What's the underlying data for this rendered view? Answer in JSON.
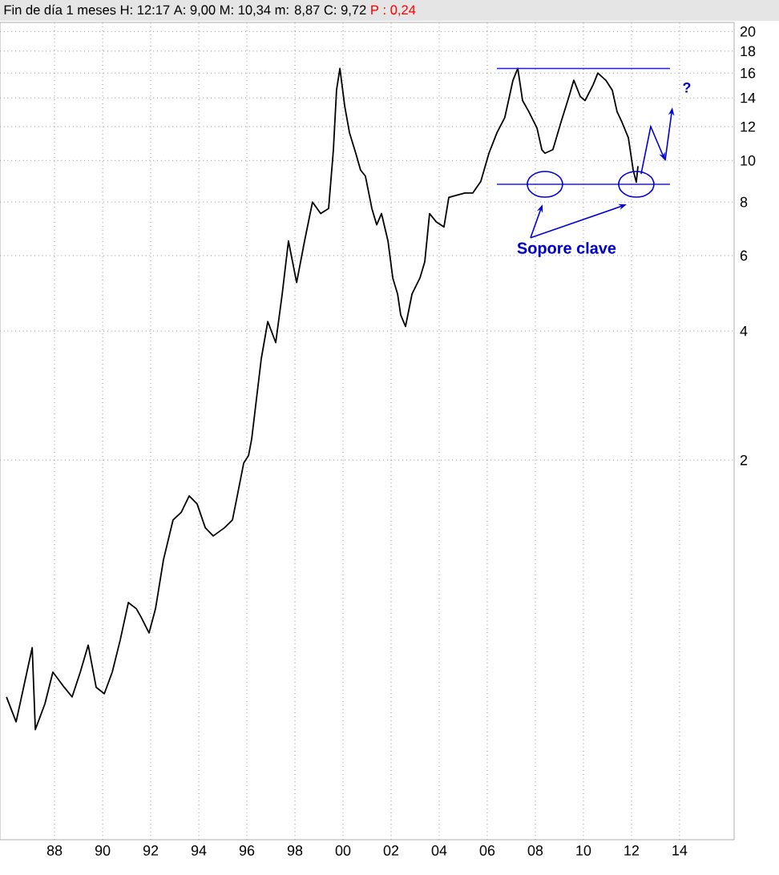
{
  "chart_data": {
    "type": "line",
    "title": "Fin de día 1 meses H: 12:17 A: 9,00 M: 10,34 m: 8,87 C: 9,72",
    "subtitle": "P : 0,24",
    "log": "y",
    "grid": true,
    "xlim": [
      1985.73,
      2016.27
    ],
    "ylim": [
      0.26,
      21
    ],
    "xticks": [
      {
        "value": 1988,
        "label": "88"
      },
      {
        "value": 1990,
        "label": "90"
      },
      {
        "value": 1992,
        "label": "92"
      },
      {
        "value": 1994,
        "label": "94"
      },
      {
        "value": 1996,
        "label": "96"
      },
      {
        "value": 1998,
        "label": "98"
      },
      {
        "value": 2000,
        "label": "00"
      },
      {
        "value": 2002,
        "label": "02"
      },
      {
        "value": 2004,
        "label": "04"
      },
      {
        "value": 2006,
        "label": "06"
      },
      {
        "value": 2008,
        "label": "08"
      },
      {
        "value": 2010,
        "label": "10"
      },
      {
        "value": 2012,
        "label": "12"
      },
      {
        "value": 2014,
        "label": "14"
      }
    ],
    "yticks": [
      2,
      4,
      6,
      8,
      10,
      12,
      14,
      16,
      18,
      20
    ],
    "series": [
      {
        "color": "#000000",
        "x": [
          1986.0,
          1986.4,
          1987.07,
          1987.2,
          1987.6,
          1987.93,
          1988.4,
          1988.73,
          1989.07,
          1989.4,
          1989.73,
          1990.07,
          1990.4,
          1990.73,
          1991.07,
          1991.4,
          1991.6,
          1991.93,
          1992.2,
          1992.53,
          1992.93,
          1993.27,
          1993.6,
          1993.93,
          1994.27,
          1994.6,
          1995.07,
          1995.4,
          1995.6,
          1995.87,
          1996.07,
          1996.2,
          1996.6,
          1996.87,
          1997.2,
          1997.47,
          1997.73,
          1998.07,
          1998.4,
          1998.73,
          1999.07,
          1999.4,
          1999.6,
          1999.73,
          1999.87,
          2000.07,
          2000.27,
          2000.53,
          2000.73,
          2000.93,
          2001.2,
          2001.4,
          2001.6,
          2001.87,
          2002.07,
          2002.27,
          2002.4,
          2002.6,
          2002.87,
          2003.2,
          2003.4,
          2003.6,
          2003.87,
          2004.2,
          2004.4,
          2004.73,
          2005.07,
          2005.4,
          2005.73,
          2006.07,
          2006.4,
          2006.73,
          2007.07,
          2007.27,
          2007.47,
          2007.73,
          2008.07,
          2008.27,
          2008.4,
          2008.73,
          2009.07,
          2009.4,
          2009.6,
          2009.87,
          2010.07,
          2010.4,
          2010.6,
          2010.93,
          2011.2,
          2011.4,
          2011.6,
          2011.87,
          2012.07,
          2012.2,
          2012.27
        ],
        "values": [
          0.56,
          0.49,
          0.73,
          0.47,
          0.54,
          0.64,
          0.59,
          0.56,
          0.64,
          0.74,
          0.59,
          0.57,
          0.64,
          0.76,
          0.93,
          0.9,
          0.86,
          0.79,
          0.9,
          1.17,
          1.45,
          1.51,
          1.65,
          1.58,
          1.39,
          1.33,
          1.39,
          1.45,
          1.65,
          1.97,
          2.05,
          2.24,
          3.45,
          4.21,
          3.76,
          4.88,
          6.49,
          5.19,
          6.49,
          8.0,
          7.52,
          7.73,
          10.6,
          14.6,
          16.4,
          13.4,
          11.6,
          10.4,
          9.5,
          9.2,
          7.73,
          7.08,
          7.52,
          6.49,
          5.32,
          4.88,
          4.36,
          4.1,
          4.88,
          5.32,
          5.8,
          7.52,
          7.2,
          7.0,
          8.2,
          8.3,
          8.4,
          8.4,
          8.93,
          10.4,
          11.6,
          12.6,
          15.4,
          16.4,
          13.8,
          13.0,
          11.9,
          10.6,
          10.4,
          10.6,
          12.3,
          14.1,
          15.4,
          14.1,
          13.8,
          15.0,
          16.0,
          15.4,
          14.6,
          13.0,
          12.3,
          11.3,
          9.5,
          8.9,
          9.7
        ]
      },
      {
        "type": "line",
        "color": "#1a1aff",
        "x": [
          2006.4,
          2013.6
        ],
        "values": [
          16.4,
          16.4
        ]
      },
      {
        "type": "line",
        "color": "#1a1aff",
        "x": [
          2006.4,
          2013.6
        ],
        "values": [
          8.8,
          8.8
        ]
      }
    ],
    "annotations": [
      "Sopore clave",
      "?"
    ]
  }
}
